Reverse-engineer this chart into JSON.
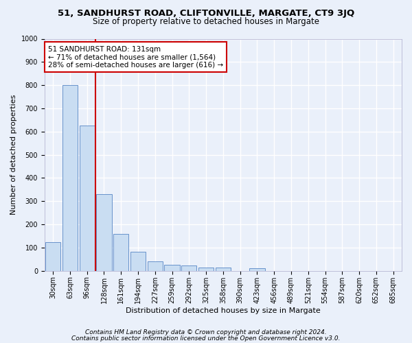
{
  "title": "51, SANDHURST ROAD, CLIFTONVILLE, MARGATE, CT9 3JQ",
  "subtitle": "Size of property relative to detached houses in Margate",
  "xlabel": "Distribution of detached houses by size in Margate",
  "ylabel": "Number of detached properties",
  "categories": [
    "30sqm",
    "63sqm",
    "96sqm",
    "128sqm",
    "161sqm",
    "194sqm",
    "227sqm",
    "259sqm",
    "292sqm",
    "325sqm",
    "358sqm",
    "390sqm",
    "423sqm",
    "456sqm",
    "489sqm",
    "521sqm",
    "554sqm",
    "587sqm",
    "620sqm",
    "652sqm",
    "685sqm"
  ],
  "values": [
    125,
    800,
    625,
    330,
    160,
    82,
    40,
    27,
    22,
    15,
    15,
    0,
    10,
    0,
    0,
    0,
    0,
    0,
    0,
    0,
    0
  ],
  "bar_color": "#c9ddf2",
  "bar_edge_color": "#5585c5",
  "vline_index": 2.5,
  "annotation_text1": "51 SANDHURST ROAD: 131sqm",
  "annotation_text2": "← 71% of detached houses are smaller (1,564)",
  "annotation_text3": "28% of semi-detached houses are larger (616) →",
  "annotation_box_color": "#ffffff",
  "annotation_box_edge": "#cc0000",
  "vline_color": "#cc0000",
  "ylim": [
    0,
    1000
  ],
  "yticks": [
    0,
    100,
    200,
    300,
    400,
    500,
    600,
    700,
    800,
    900,
    1000
  ],
  "footer1": "Contains HM Land Registry data © Crown copyright and database right 2024.",
  "footer2": "Contains public sector information licensed under the Open Government Licence v3.0.",
  "bg_color": "#eaf0fa",
  "plot_bg_color": "#eaf0fa",
  "grid_color": "#ffffff",
  "title_fontsize": 9.5,
  "subtitle_fontsize": 8.5,
  "axis_label_fontsize": 8,
  "tick_fontsize": 7,
  "footer_fontsize": 6.5
}
